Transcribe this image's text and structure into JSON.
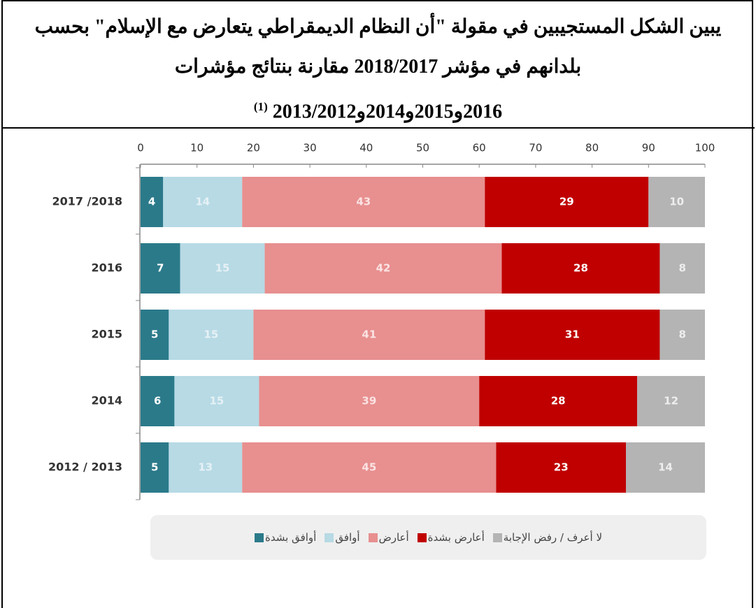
{
  "chart_data": {
    "type": "stacked_barh",
    "title_lines": [
      "يبين الشكل المستجيبين في مقولة \"أن النظام الديمقراطي يتعارض مع الإسلام\" بحسب",
      "بلدانهم في مؤشر 2018/2017 مقارنة بنتائج مؤشرات",
      "2016و2015و2014و2013/2012"
    ],
    "title_note": "(1)",
    "categories": [
      "2017 /2018",
      "2016",
      "2015",
      "2014",
      "2012 / 2013"
    ],
    "series": [
      {
        "name": "أوافق بشدة",
        "color": "#2b7a8a",
        "values": [
          4,
          7,
          5,
          6,
          5
        ]
      },
      {
        "name": "أوافق",
        "color": "#b7dae5",
        "values": [
          14,
          15,
          15,
          15,
          13
        ]
      },
      {
        "name": "أعارض",
        "color": "#e88f8f",
        "values": [
          43,
          42,
          41,
          39,
          45
        ]
      },
      {
        "name": "أعارض بشدة",
        "color": "#c00000",
        "values": [
          29,
          28,
          31,
          28,
          23
        ]
      },
      {
        "name": "لا أعرف / رفض الإجابة",
        "color": "#b4b4b4",
        "values": [
          10,
          8,
          8,
          12,
          14
        ]
      }
    ],
    "xlim": [
      0,
      100
    ],
    "xticks": [
      0,
      10,
      20,
      30,
      40,
      50,
      60,
      70,
      80,
      90,
      100
    ]
  }
}
